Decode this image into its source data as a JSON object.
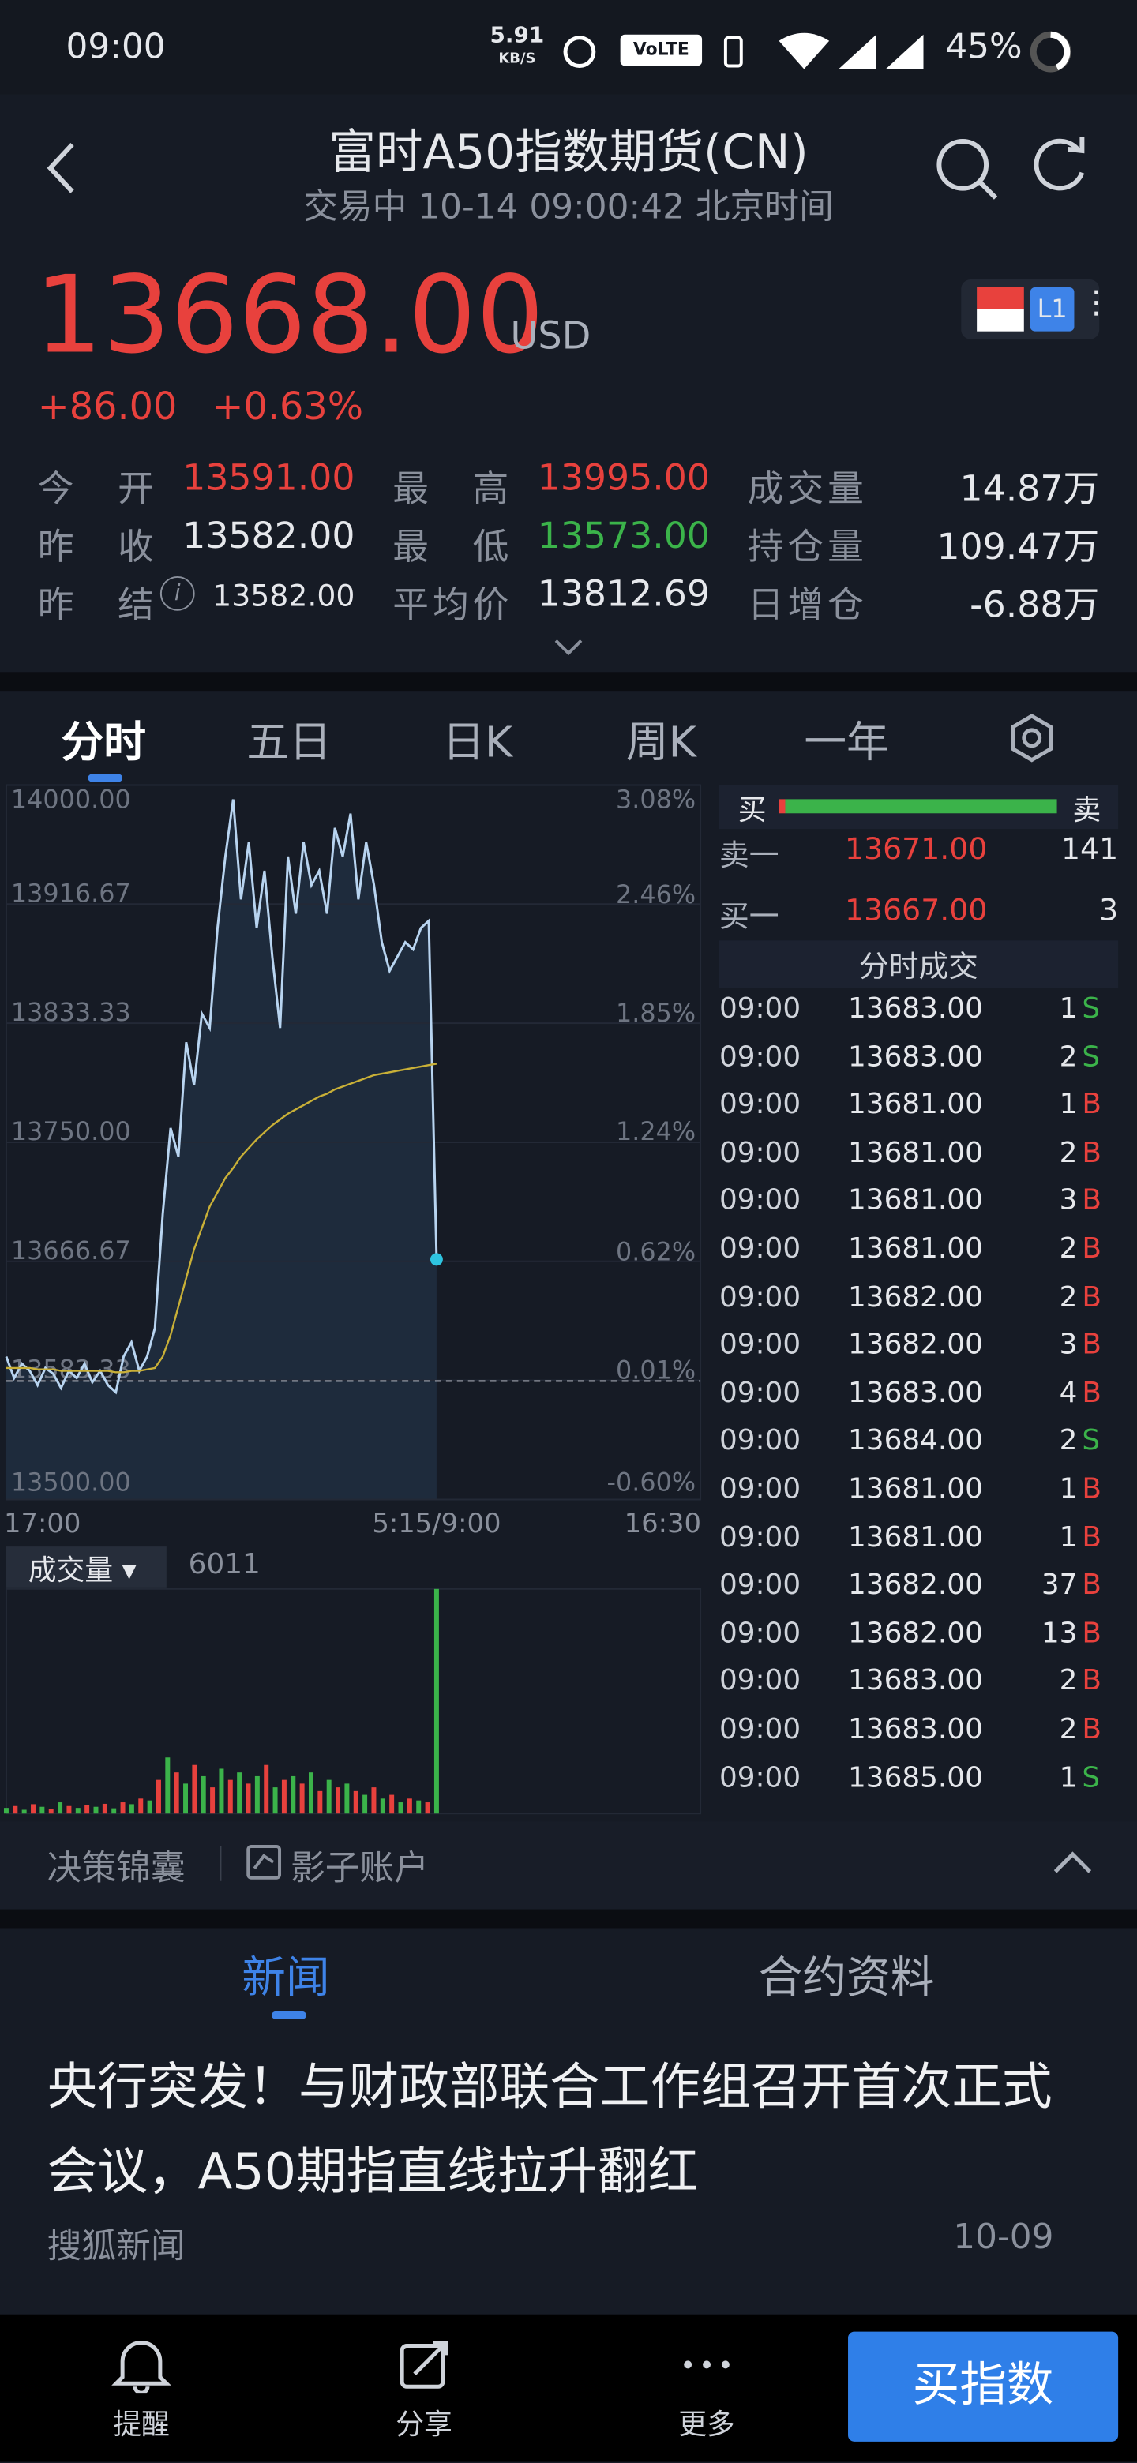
{
  "status": {
    "time": "09:00",
    "speed": "5.91",
    "speed_unit": "KB/S",
    "battery": "45%"
  },
  "header": {
    "title": "富时A50指数期货(CN)",
    "subtitle": "交易中 10-14 09:00:42 北京时间"
  },
  "quote": {
    "price": "13668.00",
    "currency": "USD",
    "change": "+86.00",
    "change_pct": "+0.63%",
    "stats": [
      {
        "label": "今开",
        "value": "13591.00",
        "color": "#e8413d"
      },
      {
        "label": "最高",
        "value": "13995.00",
        "color": "#e8413d"
      },
      {
        "label": "成交量",
        "value": "14.87万",
        "color": "#e6e8ec"
      },
      {
        "label": "昨收",
        "value": "13582.00",
        "color": "#e6e8ec"
      },
      {
        "label": "最低",
        "value": "13573.00",
        "color": "#3bb34a"
      },
      {
        "label": "持仓量",
        "value": "109.47万",
        "color": "#e6e8ec"
      },
      {
        "label": "昨结",
        "value": "13582.00",
        "color": "#e6e8ec"
      },
      {
        "label": "平均价",
        "value": "13812.69",
        "color": "#e6e8ec"
      },
      {
        "label": "日增仓",
        "value": "-6.88万",
        "color": "#e6e8ec"
      }
    ]
  },
  "tabs": [
    "分时",
    "五日",
    "日K",
    "周K",
    "一年"
  ],
  "chart_data": {
    "type": "line",
    "ylim": [
      13500,
      14000
    ],
    "yticks": [
      {
        "value": 14000,
        "label": "14000.00"
      },
      {
        "value": 13916.67,
        "label": "13916.67"
      },
      {
        "value": 13833.33,
        "label": "13833.33"
      },
      {
        "value": 13750,
        "label": "13750.00"
      },
      {
        "value": 13666.67,
        "label": "13666.67"
      },
      {
        "value": 13583.33,
        "label": "13583.33"
      },
      {
        "value": 13500,
        "label": "13500.00"
      }
    ],
    "y2lim": [
      -0.6,
      3.08
    ],
    "y2ticks": [
      {
        "value": 3.08,
        "label": "3.08%"
      },
      {
        "value": 2.46,
        "label": "2.46%"
      },
      {
        "value": 1.85,
        "label": "1.85%"
      },
      {
        "value": 1.24,
        "label": "1.24%"
      },
      {
        "value": 0.62,
        "label": "0.62%"
      },
      {
        "value": 0.01,
        "label": "0.01%"
      },
      {
        "value": -0.6,
        "label": "-0.60%"
      }
    ],
    "x_labels": [
      "17:00",
      "5:15/9:00",
      "16:30"
    ],
    "series": [
      {
        "color": "#b8d4f0",
        "values": [
          13600,
          13585,
          13595,
          13590,
          13580,
          13592,
          13588,
          13578,
          13590,
          13585,
          13595,
          13582,
          13590,
          13580,
          13575,
          13600,
          13610,
          13590,
          13600,
          13620,
          13700,
          13760,
          13740,
          13820,
          13790,
          13840,
          13830,
          13900,
          13950,
          13990,
          13920,
          13960,
          13900,
          13940,
          13880,
          13830,
          13950,
          13910,
          13960,
          13930,
          13940,
          13910,
          13970,
          13950,
          13980,
          13920,
          13960,
          13930,
          13890,
          13870,
          13880,
          13890,
          13885,
          13900,
          13905,
          13668
        ]
      },
      {
        "color": "#c9b037",
        "values": [
          13592,
          13592,
          13592,
          13592,
          13591,
          13591,
          13591,
          13590,
          13590,
          13590,
          13590,
          13590,
          13590,
          13590,
          13589,
          13589,
          13590,
          13590,
          13591,
          13592,
          13600,
          13615,
          13635,
          13655,
          13675,
          13690,
          13705,
          13715,
          13725,
          13732,
          13740,
          13746,
          13752,
          13757,
          13762,
          13766,
          13770,
          13773,
          13776,
          13779,
          13782,
          13784,
          13787,
          13789,
          13791,
          13793,
          13795,
          13797,
          13798,
          13799,
          13800,
          13801,
          13802,
          13803,
          13804,
          13805
        ]
      }
    ],
    "volume": {
      "label": "成交量",
      "ylim": [
        0,
        6011
      ],
      "colors": [
        "#e8413d",
        "#3bb34a"
      ],
      "values": [
        150,
        200,
        100,
        250,
        180,
        120,
        300,
        200,
        150,
        220,
        180,
        260,
        140,
        300,
        250,
        400,
        350,
        900,
        1500,
        1100,
        800,
        1300,
        1000,
        700,
        1200,
        900,
        1100,
        800,
        1000,
        1300,
        700,
        900,
        1000,
        800,
        1100,
        600,
        900,
        700,
        800,
        600,
        500,
        700,
        400,
        500,
        300,
        400,
        350,
        300,
        6011
      ]
    }
  },
  "order_book": {
    "bid_label": "买",
    "ask_label": "卖",
    "ask": {
      "label": "卖一",
      "price": "13671.00",
      "qty": "141"
    },
    "bid": {
      "label": "买一",
      "price": "13667.00",
      "qty": "3"
    }
  },
  "trades": {
    "title": "分时成交",
    "rows": [
      [
        "09:00",
        "13683.00",
        "1",
        "S"
      ],
      [
        "09:00",
        "13683.00",
        "2",
        "S"
      ],
      [
        "09:00",
        "13681.00",
        "1",
        "B"
      ],
      [
        "09:00",
        "13681.00",
        "2",
        "B"
      ],
      [
        "09:00",
        "13681.00",
        "3",
        "B"
      ],
      [
        "09:00",
        "13681.00",
        "2",
        "B"
      ],
      [
        "09:00",
        "13682.00",
        "2",
        "B"
      ],
      [
        "09:00",
        "13682.00",
        "3",
        "B"
      ],
      [
        "09:00",
        "13683.00",
        "4",
        "B"
      ],
      [
        "09:00",
        "13684.00",
        "2",
        "S"
      ],
      [
        "09:00",
        "13681.00",
        "1",
        "B"
      ],
      [
        "09:00",
        "13681.00",
        "1",
        "B"
      ],
      [
        "09:00",
        "13682.00",
        "37",
        "B"
      ],
      [
        "09:00",
        "13682.00",
        "13",
        "B"
      ],
      [
        "09:00",
        "13683.00",
        "2",
        "B"
      ],
      [
        "09:00",
        "13683.00",
        "2",
        "B"
      ],
      [
        "09:00",
        "13685.00",
        "1",
        "S"
      ]
    ]
  },
  "tools": [
    "决策锦囊",
    "影子账户"
  ],
  "news": {
    "tabs": [
      "新闻",
      "合约资料"
    ],
    "items": [
      {
        "headline": "央行突发！与财政部联合工作组召开首次正式会议，A50期指直线拉升翻红",
        "source": "搜狐新闻",
        "date": "10-09"
      }
    ]
  },
  "nav": {
    "items": [
      "提醒",
      "分享",
      "更多"
    ],
    "button": "买指数"
  }
}
